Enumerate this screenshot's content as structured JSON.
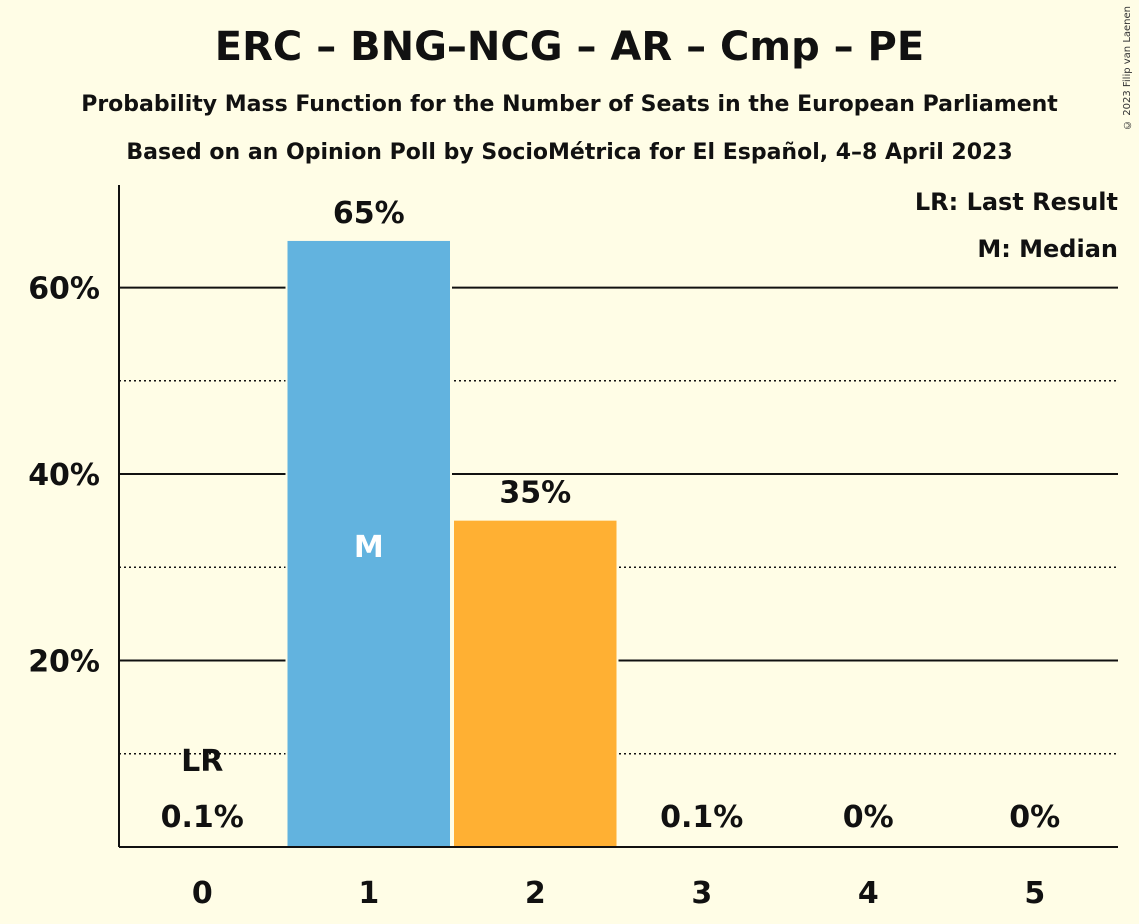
{
  "title": "ERC – BNG–NCG – AR – Cmp – PE",
  "subtitle": "Probability Mass Function for the Number of Seats in the European Parliament",
  "subtitle2": "Based on an Opinion Poll by SocioMétrica for El Español, 4–8 April 2023",
  "copyright": "© 2023 Filip van Laenen",
  "legend": {
    "last_result": "LR: Last Result",
    "median": "M: Median"
  },
  "chart_data": {
    "type": "bar",
    "categories": [
      "0",
      "1",
      "2",
      "3",
      "4",
      "5"
    ],
    "values": [
      0.1,
      65,
      35,
      0.1,
      0,
      0
    ],
    "value_labels": [
      "0.1%",
      "65%",
      "35%",
      "0.1%",
      "0%",
      "0%"
    ],
    "bar_colors": [
      "#62B3DF",
      "#62B3DF",
      "#FFB033",
      "#FFB033",
      "#FFB033",
      "#FFB033"
    ],
    "ylim": [
      0,
      71
    ],
    "y_major_ticks": [
      20,
      40,
      60
    ],
    "y_major_tick_labels": [
      "20%",
      "40%",
      "60%"
    ],
    "y_minor_ticks": [
      10,
      30,
      50
    ],
    "last_result_index": 0,
    "last_result_label": "LR",
    "median_index": 1,
    "median_label": "M",
    "legend_position": "top-right"
  }
}
